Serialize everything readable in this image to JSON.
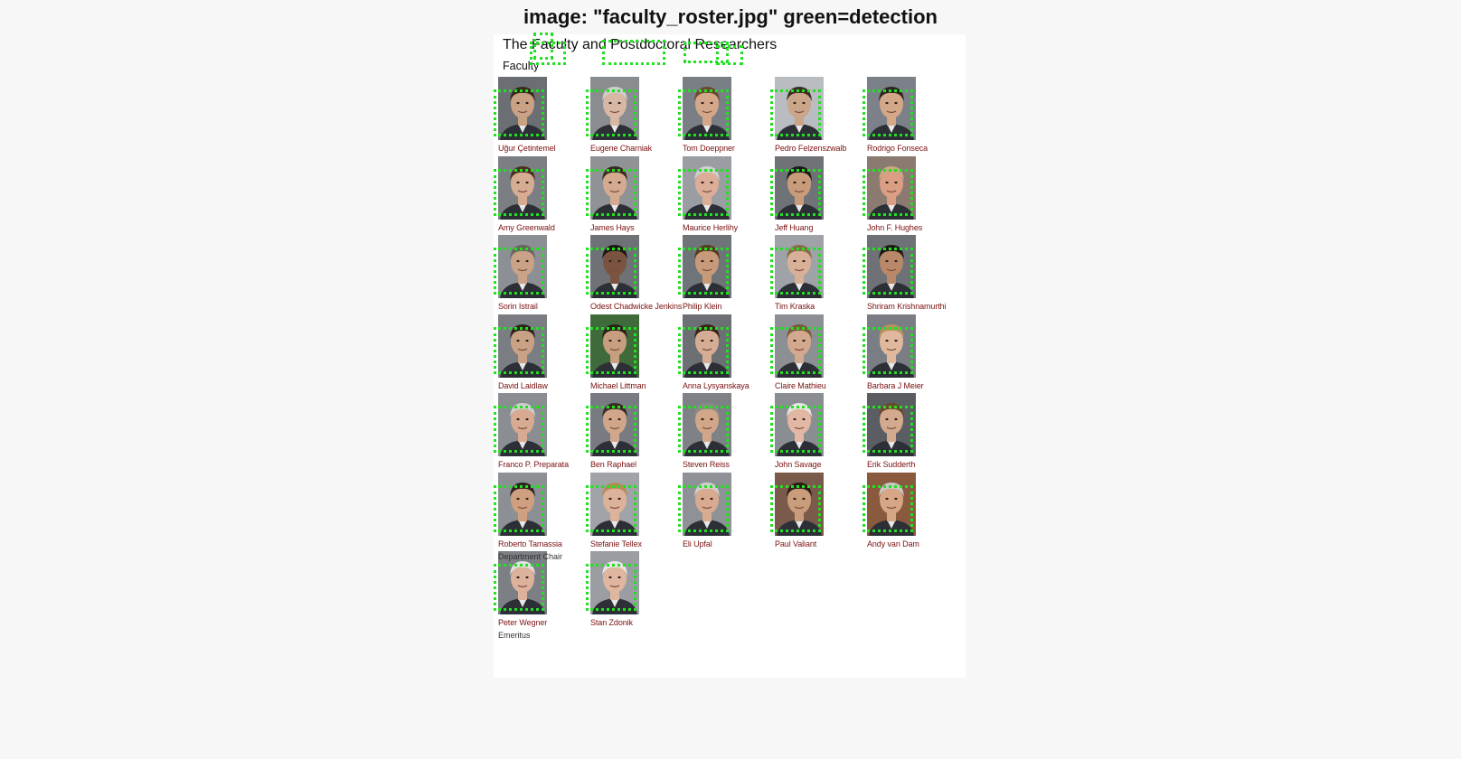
{
  "figure": {
    "title": "image: \"faculty_roster.jpg\" green=detection",
    "overlay_color": "#22e022"
  },
  "roster": {
    "heading": "The Faculty and Postdoctoral Researchers",
    "section": "Faculty",
    "name_color": "#7a1010",
    "people": [
      {
        "name": "Uğur Çetintemel",
        "tone": "#c9a184",
        "hair": "#3a2a1e",
        "bg": "#6b6f74"
      },
      {
        "name": "Eugene Charniak",
        "tone": "#d8b8a4",
        "hair": "#cfcfcf",
        "bg": "#8a8d90"
      },
      {
        "name": "Tom Doeppner",
        "tone": "#d4a68a",
        "hair": "#6b4a30",
        "bg": "#7a7f86"
      },
      {
        "name": "Pedro Felzenszwalb",
        "tone": "#caa58a",
        "hair": "#3b2d22",
        "bg": "#b9bcc0"
      },
      {
        "name": "Rodrigo Fonseca",
        "tone": "#d2a888",
        "hair": "#2c2420",
        "bg": "#7c8088"
      },
      {
        "name": "Amy Greenwald",
        "tone": "#d6ac92",
        "hair": "#4b3022",
        "bg": "#7b7f83"
      },
      {
        "name": "James Hays",
        "tone": "#d4ab90",
        "hair": "#3a2c22",
        "bg": "#8f9396"
      },
      {
        "name": "Maurice Herlihy",
        "tone": "#dcae98",
        "hair": "#cfcfcf",
        "bg": "#9a9da2"
      },
      {
        "name": "Jeff Huang",
        "tone": "#c89c7a",
        "hair": "#1e1a18",
        "bg": "#6f7377"
      },
      {
        "name": "John F. Hughes",
        "tone": "#d99e84",
        "hair": "#caa880",
        "bg": "#8a7a70"
      },
      {
        "name": "Sorin Istrail",
        "tone": "#c9a288",
        "hair": "#6a6460",
        "bg": "#8c8f93"
      },
      {
        "name": "Odest Chadwicke Jenkins",
        "tone": "#7a5440",
        "hair": "#1e1612",
        "bg": "#6e7276"
      },
      {
        "name": "Philip Klein",
        "tone": "#c79a7a",
        "hair": "#5a3a22",
        "bg": "#6f7478"
      },
      {
        "name": "Tim Kraska",
        "tone": "#d8b098",
        "hair": "#8a6a4a",
        "bg": "#9fa3a8"
      },
      {
        "name": "Shriram Krishnamurthi",
        "tone": "#b88868",
        "hair": "#1e1814",
        "bg": "#6e7276"
      },
      {
        "name": "David Laidlaw",
        "tone": "#c9a286",
        "hair": "#2e241c",
        "bg": "#7a7e82"
      },
      {
        "name": "Michael Littman",
        "tone": "#c89e80",
        "hair": "#2a2018",
        "bg": "#3f6a3a"
      },
      {
        "name": "Anna Lysyanskaya",
        "tone": "#d6ac94",
        "hair": "#3a2418",
        "bg": "#6c6f74"
      },
      {
        "name": "Claire Mathieu",
        "tone": "#d2a88e",
        "hair": "#7a5a3a",
        "bg": "#8c9094"
      },
      {
        "name": "Barbara J Meier",
        "tone": "#e0b89e",
        "hair": "#b9905e",
        "bg": "#7a7e84"
      },
      {
        "name": "Franco P. Preparata",
        "tone": "#d8aa92",
        "hair": "#cfcfcf",
        "bg": "#8a8d92"
      },
      {
        "name": "Ben Raphael",
        "tone": "#d2a68a",
        "hair": "#3a2c22",
        "bg": "#787c82"
      },
      {
        "name": "Steven Reiss",
        "tone": "#d2a688",
        "hair": "#8a8a88",
        "bg": "#7e8286"
      },
      {
        "name": "John Savage",
        "tone": "#e2b8a4",
        "hair": "#e6e6e6",
        "bg": "#8a8e92"
      },
      {
        "name": "Erik Sudderth",
        "tone": "#d4aa8e",
        "hair": "#6b4a2c",
        "bg": "#5a5e62"
      },
      {
        "name": "Roberto Tamassia",
        "tone": "#cfa080",
        "hair": "#2c2420",
        "bg": "#8c9094"
      },
      {
        "name": "Stefanie Tellex",
        "tone": "#dcb29a",
        "hair": "#b88a5a",
        "bg": "#a0a4a8"
      },
      {
        "name": "Eli Upfal",
        "tone": "#d8aa90",
        "hair": "#cfcfcf",
        "bg": "#8e9296"
      },
      {
        "name": "Paul Valiant",
        "tone": "#c99c7c",
        "hair": "#2a1e16",
        "bg": "#7a5a4a"
      },
      {
        "name": "Andy van Dam",
        "tone": "#d6a686",
        "hair": "#c8c8c8",
        "bg": "#8a5a3e"
      },
      {
        "name": "Peter Wegner",
        "tone": "#ddb29c",
        "hair": "#e0e0e0",
        "bg": "#7c8084"
      },
      {
        "name": "Stan Zdonik",
        "tone": "#e0b6a0",
        "hair": "#e6e6e6",
        "bg": "#9a9ea2"
      }
    ],
    "notes": [
      {
        "after": "Roberto Tamassia",
        "text": "Department Chair"
      },
      {
        "after": "Peter Wegner",
        "text": "Emeritus"
      }
    ]
  }
}
